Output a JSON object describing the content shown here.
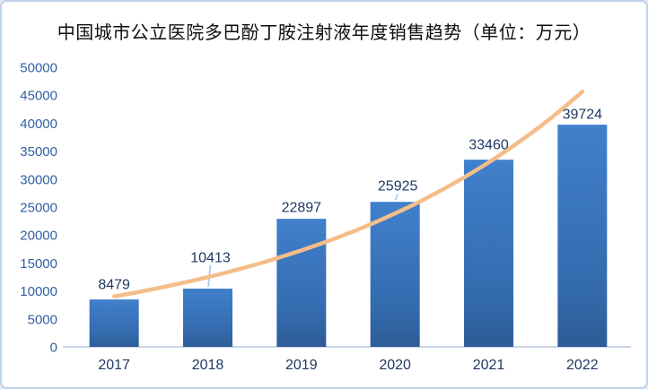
{
  "chart_data": {
    "type": "bar",
    "title": "中国城市公立医院多巴酚丁胺注射液年度销售趋势（单位：万元）",
    "unit": "万元",
    "categories": [
      "2017",
      "2018",
      "2019",
      "2020",
      "2021",
      "2022"
    ],
    "values": [
      8479,
      10413,
      22897,
      25925,
      33460,
      39724
    ],
    "data_labels": [
      "8479",
      "10413",
      "22897",
      "25925",
      "33460",
      "39724"
    ],
    "xlabel": "",
    "ylabel": "",
    "ylim": [
      0,
      50000
    ],
    "ytick_interval": 5000,
    "yticks": [
      "0",
      "5000",
      "10000",
      "15000",
      "20000",
      "25000",
      "30000",
      "35000",
      "40000",
      "45000",
      "50000"
    ],
    "grid": false,
    "legend": "none",
    "trendline": {
      "type": "exponential",
      "style": "smooth curve rising from first bar top to above last bar",
      "color": "#f5bd8a"
    },
    "label_gaps": [
      17,
      35,
      13,
      18,
      17,
      12
    ],
    "leader_lines": [
      false,
      true,
      false,
      true,
      false,
      false
    ],
    "colors": {
      "bar_top": "#4180cc",
      "bar_bottom": "#2d5c96",
      "trend": "#f5bd8a",
      "axis_line": "#c9d7ec",
      "ytick_label": "#2f5fa3",
      "xtick_label": "#1f3864",
      "data_label": "#1f3864",
      "leader_line": "#9dc3e6",
      "card_border": "#bdd2ea",
      "title_text": "#0d0d0d"
    }
  }
}
